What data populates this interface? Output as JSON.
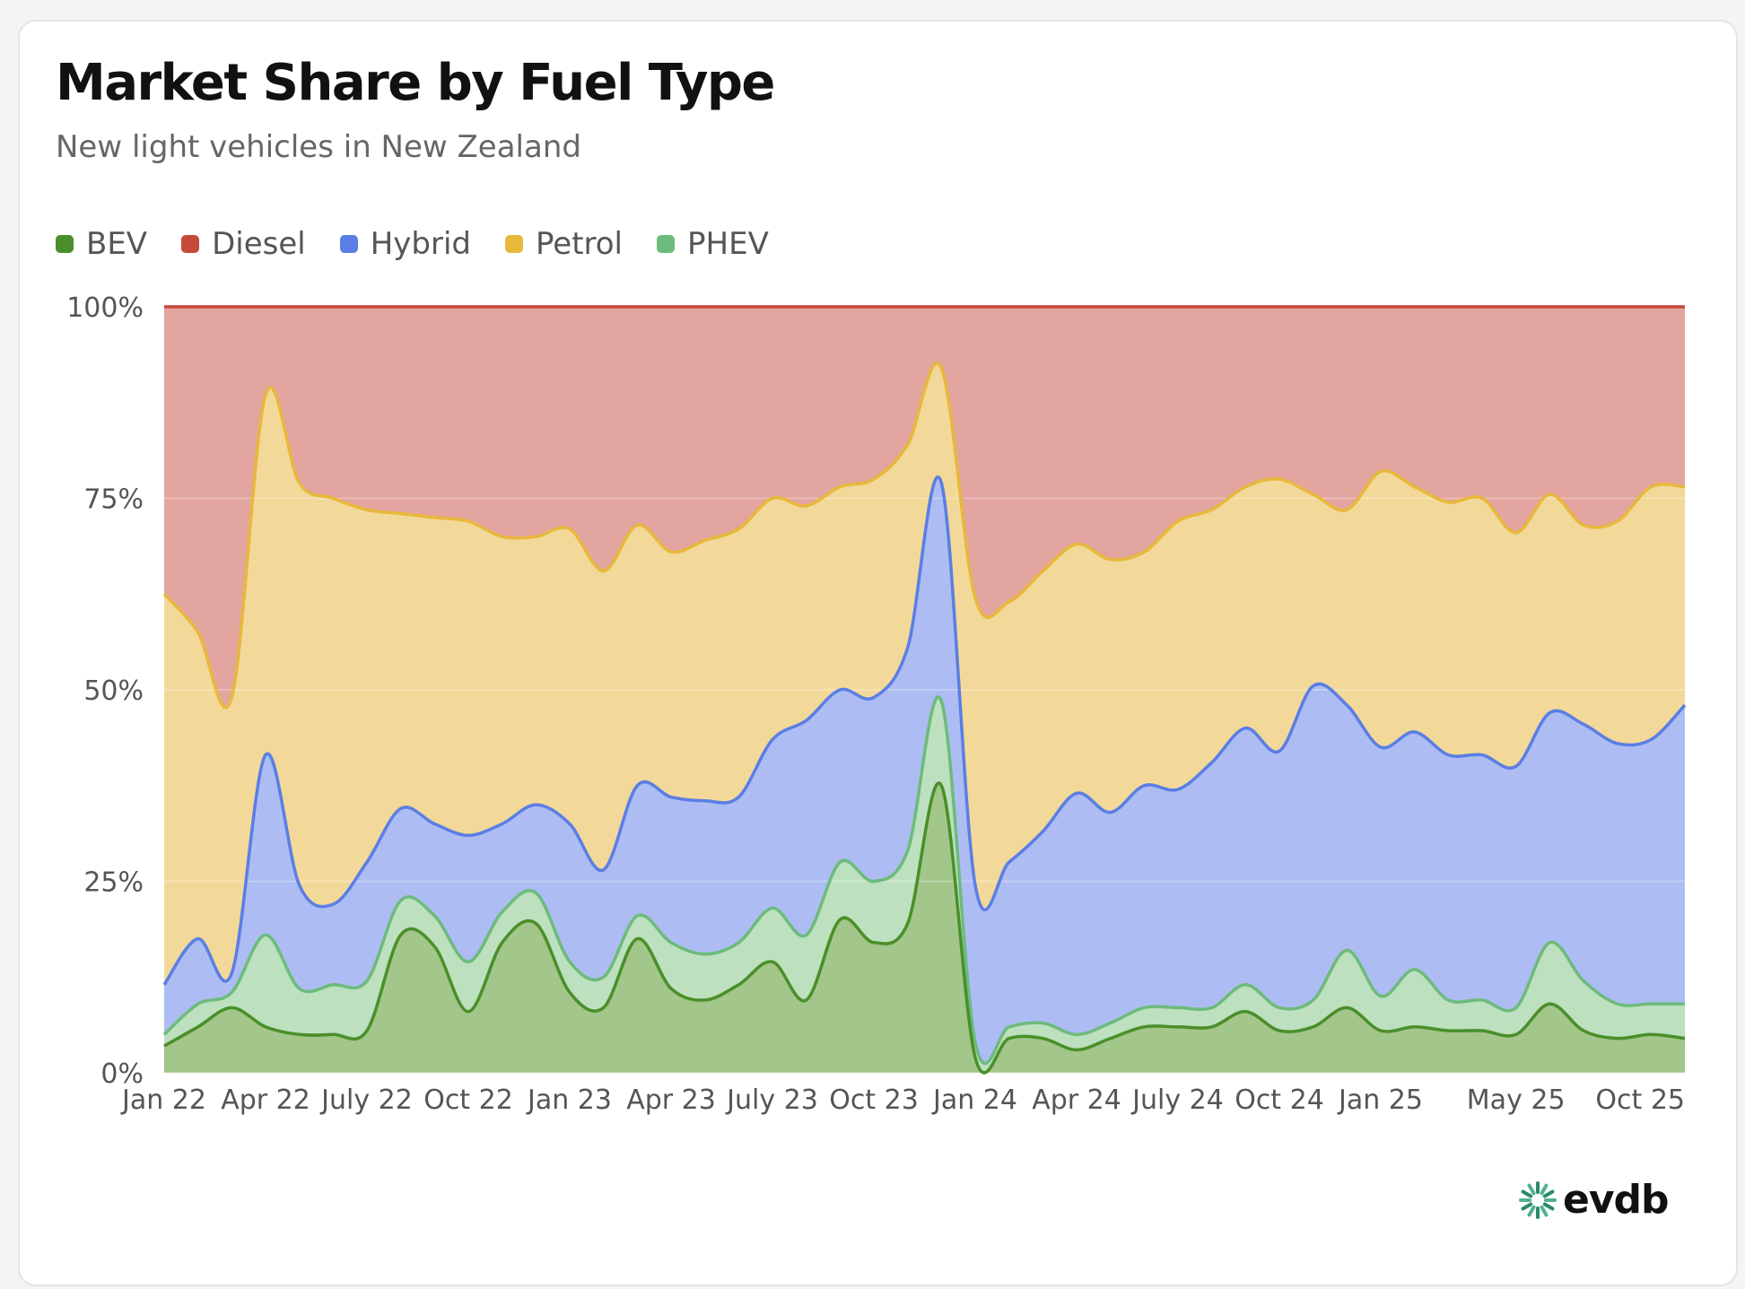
{
  "title": "Market Share by Fuel Type",
  "subtitle": "New light vehicles in New Zealand",
  "logo_text": "evdb",
  "logo_icon": "evdb-logo-icon",
  "legend": [
    {
      "name": "BEV",
      "color": "#4a8f2a"
    },
    {
      "name": "Diesel",
      "color": "#c5493a"
    },
    {
      "name": "Hybrid",
      "color": "#5b7ee5"
    },
    {
      "name": "Petrol",
      "color": "#e8b83c"
    },
    {
      "name": "PHEV",
      "color": "#6dbb7c"
    }
  ],
  "chart_data": {
    "type": "area",
    "stacked": true,
    "y_tick_labels": [
      "0%",
      "25%",
      "50%",
      "75%",
      "100%"
    ],
    "ylim": [
      0,
      100
    ],
    "y_unit": "%",
    "grid": true,
    "legend_position": "top-left",
    "x_tick_labels": [
      {
        "label": "Jan 22",
        "index": 0
      },
      {
        "label": "Apr 22",
        "index": 3
      },
      {
        "label": "July 22",
        "index": 6
      },
      {
        "label": "Oct 22",
        "index": 9
      },
      {
        "label": "Jan 23",
        "index": 12
      },
      {
        "label": "Apr 23",
        "index": 15
      },
      {
        "label": "July 23",
        "index": 18
      },
      {
        "label": "Oct 23",
        "index": 21
      },
      {
        "label": "Jan 24",
        "index": 24
      },
      {
        "label": "Apr 24",
        "index": 27
      },
      {
        "label": "July 24",
        "index": 30
      },
      {
        "label": "Oct 24",
        "index": 33
      },
      {
        "label": "Jan 25",
        "index": 36
      },
      {
        "label": "May 25",
        "index": 40
      },
      {
        "label": "Oct 25",
        "index": 45
      }
    ],
    "series": [
      {
        "name": "BEV",
        "color": "#4a8f2a",
        "fill": "#a3c68a",
        "values": [
          3.5,
          6,
          8.5,
          6,
          5,
          5,
          5.5,
          18,
          16.5,
          8,
          17,
          19.5,
          10.5,
          8.5,
          17.5,
          11,
          9.5,
          11.5,
          14.5,
          9.5,
          20,
          17,
          19.5,
          37.5,
          2,
          4.5,
          4.5,
          3,
          4.5,
          6,
          6,
          6,
          8,
          5.5,
          6,
          8.5,
          5.5,
          6,
          5.5,
          5.5,
          5,
          9,
          5.5,
          4.5,
          5,
          4.5
        ]
      },
      {
        "name": "PHEV",
        "color": "#6dbb7c",
        "fill": "#bde0bf",
        "values": [
          5,
          9,
          10.5,
          18,
          11,
          11.5,
          12,
          22.5,
          20.5,
          14.5,
          21,
          23.5,
          14.5,
          12.5,
          20.5,
          17,
          15.5,
          17,
          21.5,
          18,
          27.5,
          25,
          29,
          48.5,
          4,
          6,
          6.5,
          5,
          6.5,
          8.5,
          8.5,
          8.5,
          11.5,
          8.5,
          9.5,
          16,
          10,
          13.5,
          9.5,
          9.5,
          8.5,
          17,
          12,
          9,
          9,
          9
        ]
      },
      {
        "name": "Hybrid",
        "color": "#5b7ee5",
        "fill": "#adbdf3",
        "values": [
          11.5,
          17.5,
          13,
          41.5,
          24.5,
          22,
          27.5,
          34.5,
          32.5,
          31,
          32.5,
          35,
          32.5,
          26.5,
          37.5,
          36,
          35.5,
          36,
          43.5,
          46,
          50,
          49,
          55.5,
          77,
          24.5,
          27.5,
          31.5,
          36.5,
          34,
          37.5,
          37,
          40.5,
          45,
          42,
          50.5,
          48,
          42.5,
          44.5,
          41.5,
          41.5,
          40,
          47,
          45.5,
          43,
          43.5,
          48
        ]
      },
      {
        "name": "Petrol",
        "color": "#e8b83c",
        "fill": "#f2d999",
        "values": [
          62.5,
          57.5,
          49,
          88.5,
          77,
          75,
          73.5,
          73,
          72.5,
          72,
          70,
          70,
          71,
          65.5,
          71.5,
          68,
          69.5,
          71,
          75,
          74,
          76.5,
          77.5,
          82,
          92,
          62,
          61.5,
          65.5,
          69,
          67,
          68,
          72,
          73.5,
          76.5,
          77.5,
          75.5,
          73.5,
          78.5,
          76.5,
          74.5,
          75,
          70.5,
          75.5,
          71.5,
          72,
          76.5,
          76.5
        ]
      },
      {
        "name": "Diesel",
        "color": "#c5493a",
        "fill": "#e2a59f",
        "values": [
          100,
          100,
          100,
          100,
          100,
          100,
          100,
          100,
          100,
          100,
          100,
          100,
          100,
          100,
          100,
          100,
          100,
          100,
          100,
          100,
          100,
          100,
          100,
          100,
          100,
          100,
          100,
          100,
          100,
          100,
          100,
          100,
          100,
          100,
          100,
          100,
          100,
          100,
          100,
          100,
          100,
          100,
          100,
          100,
          100,
          100
        ]
      }
    ]
  }
}
